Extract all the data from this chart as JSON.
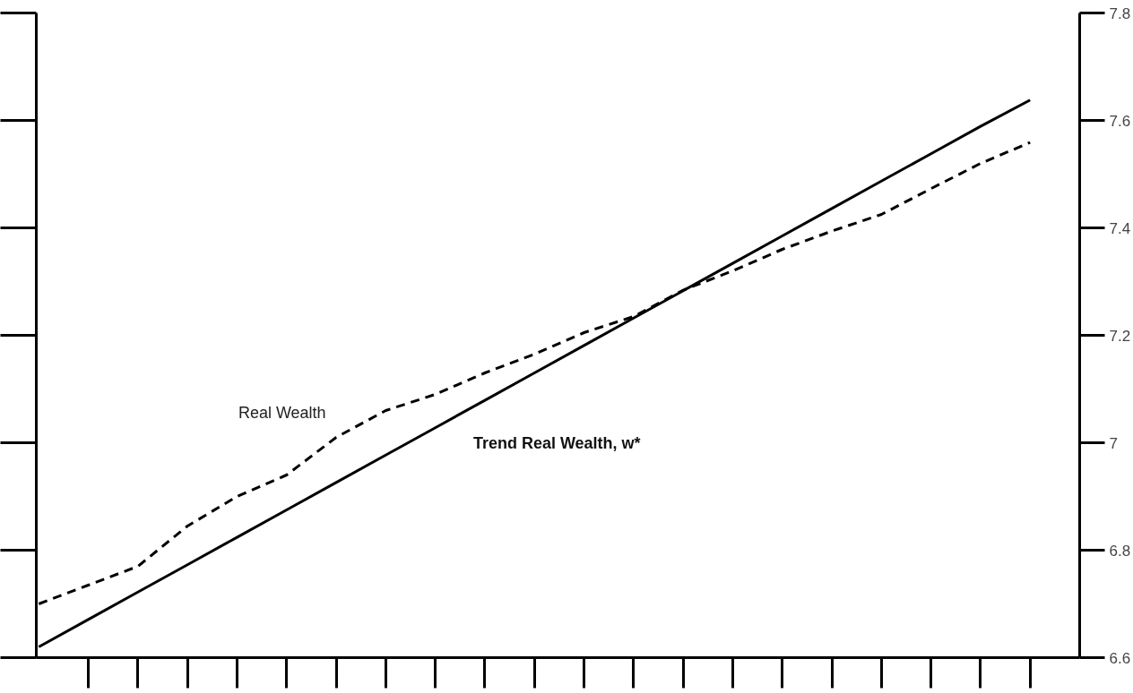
{
  "chart_data": {
    "type": "line",
    "categories": [
      null,
      null,
      null,
      null,
      null,
      null,
      null,
      null,
      null,
      null,
      null,
      null,
      null,
      null,
      null,
      null,
      null,
      null,
      null,
      null,
      null
    ],
    "series": [
      {
        "name": "Real Wealth",
        "color": "#000000",
        "line_style": "dashed",
        "values": [
          6.7,
          6.735,
          6.77,
          6.845,
          6.9,
          6.94,
          7.01,
          7.06,
          7.09,
          7.13,
          7.165,
          7.205,
          7.235,
          7.284,
          7.32,
          7.36,
          7.394,
          7.425,
          7.473,
          7.52,
          7.559
        ]
      },
      {
        "name": "Trend Real Wealth, w*",
        "color": "#000000",
        "line_style": "solid",
        "values": [
          6.62,
          6.671,
          6.722,
          6.773,
          6.824,
          6.875,
          6.926,
          6.977,
          7.028,
          7.079,
          7.13,
          7.181,
          7.232,
          7.283,
          7.334,
          7.385,
          7.436,
          7.487,
          7.538,
          7.589,
          7.638
        ]
      }
    ],
    "ylim": [
      6.6,
      7.8
    ],
    "yticks": [
      6.6,
      6.8,
      7,
      7.2,
      7.4,
      7.6,
      7.8
    ],
    "tick_labels": "y",
    "grid": false,
    "legend": false,
    "marker": "none"
  }
}
